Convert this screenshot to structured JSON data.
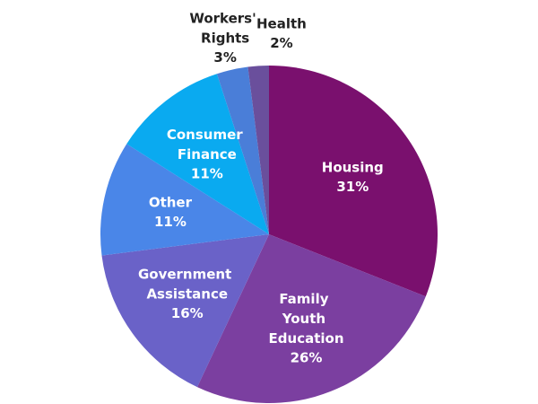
{
  "chart_data": {
    "type": "pie",
    "categories": [
      "Housing",
      "Family Youth Education",
      "Government Assistance",
      "Other",
      "Consumer Finance",
      "Workers' Rights",
      "Health"
    ],
    "values": [
      31,
      26,
      16,
      11,
      11,
      3,
      2
    ],
    "value_labels": [
      "31%",
      "26%",
      "16%",
      "11%",
      "11%",
      "3%",
      "2%"
    ],
    "colors": [
      "#7a106e",
      "#7b3fa0",
      "#6a62c8",
      "#4a86e8",
      "#0aaaf0",
      "#4a7ed8",
      "#6a4f9c"
    ]
  }
}
